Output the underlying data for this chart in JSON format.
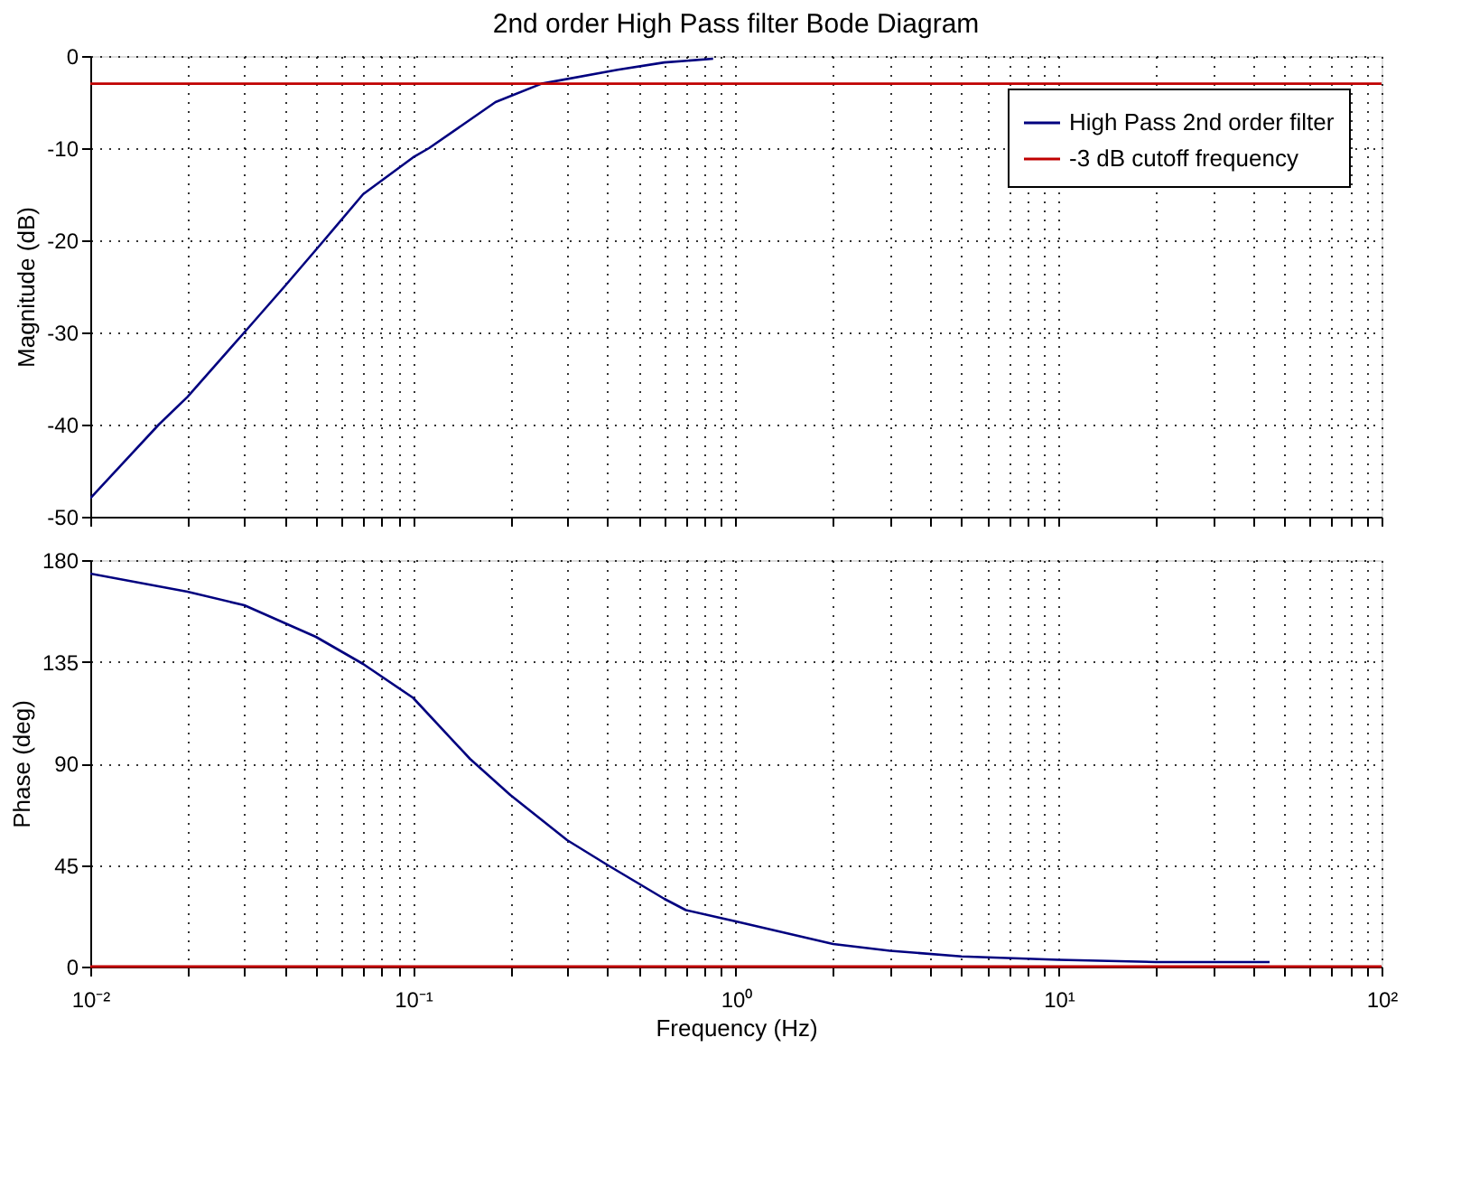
{
  "chart_data": [
    {
      "type": "line",
      "title": "2nd order High Pass filter Bode Diagram",
      "ylabel": "Magnitude (dB)",
      "series": [
        {
          "name": "High Pass 2nd order filter",
          "color": "#00007f",
          "x": [
            0.01,
            0.0163,
            0.02,
            0.03,
            0.04,
            0.053,
            0.07,
            0.1,
            0.112,
            0.18,
            0.25,
            0.43,
            0.6,
            0.85
          ],
          "values": [
            -48,
            -40,
            -37,
            -30,
            -25,
            -20,
            -15,
            -11,
            -10,
            -5,
            -3,
            -1.5,
            -0.7,
            -0.3
          ]
        },
        {
          "name": "-3 dB cutoff frequency",
          "color": "#c00000",
          "x": [
            0.01,
            100
          ],
          "values": [
            -3,
            -3
          ]
        }
      ],
      "xlim": [
        0.01,
        100
      ],
      "ylim": [
        -50,
        0
      ],
      "yticks": [
        -50,
        -40,
        -30,
        -20,
        -10,
        0
      ],
      "xticks": [
        {
          "value": 0.01,
          "label": null
        },
        {
          "value": 0.02,
          "label": null
        },
        {
          "value": 0.03,
          "label": null
        },
        {
          "value": 0.04,
          "label": null
        },
        {
          "value": 0.05,
          "label": null
        },
        {
          "value": 0.06,
          "label": null
        },
        {
          "value": 0.07,
          "label": null
        },
        {
          "value": 0.08,
          "label": null
        },
        {
          "value": 0.09,
          "label": null
        },
        {
          "value": 0.1,
          "label": null
        },
        {
          "value": 0.2,
          "label": null
        },
        {
          "value": 0.3,
          "label": null
        },
        {
          "value": 0.4,
          "label": null
        },
        {
          "value": 0.5,
          "label": null
        },
        {
          "value": 0.6,
          "label": null
        },
        {
          "value": 0.7,
          "label": null
        },
        {
          "value": 0.8,
          "label": null
        },
        {
          "value": 0.9,
          "label": null
        },
        {
          "value": 1,
          "label": null
        },
        {
          "value": 2,
          "label": null
        },
        {
          "value": 3,
          "label": null
        },
        {
          "value": 4,
          "label": null
        },
        {
          "value": 5,
          "label": null
        },
        {
          "value": 6,
          "label": null
        },
        {
          "value": 7,
          "label": null
        },
        {
          "value": 8,
          "label": null
        },
        {
          "value": 9,
          "label": null
        },
        {
          "value": 10,
          "label": null
        },
        {
          "value": 20,
          "label": null
        },
        {
          "value": 30,
          "label": null
        },
        {
          "value": 40,
          "label": null
        },
        {
          "value": 50,
          "label": null
        },
        {
          "value": 60,
          "label": null
        },
        {
          "value": 70,
          "label": null
        },
        {
          "value": 80,
          "label": null
        },
        {
          "value": 90,
          "label": null
        },
        {
          "value": 100,
          "label": null
        }
      ],
      "log": "x",
      "grid": true,
      "legend": "top right",
      "tick_labels": "y",
      "marker": "none",
      "line_style": "solid"
    },
    {
      "type": "line",
      "xlabel": "Frequency  (Hz)",
      "ylabel": "Phase (deg)",
      "series": [
        {
          "color": "#00007f",
          "x": [
            0.01,
            0.02,
            0.03,
            0.05,
            0.07,
            0.1,
            0.15,
            0.2,
            0.3,
            0.4,
            0.6,
            0.7,
            1,
            2,
            3,
            5,
            10,
            20,
            45
          ],
          "values": [
            174,
            166,
            160,
            146,
            134,
            119,
            92,
            76,
            56,
            45,
            30,
            25,
            20,
            10,
            7,
            4.5,
            3,
            2,
            2
          ]
        }
      ],
      "ref_lines": [
        {
          "axis": "y",
          "value": 0,
          "color": "#c00000"
        }
      ],
      "xlim": [
        0.01,
        100
      ],
      "ylim": [
        0,
        180
      ],
      "yticks": [
        0,
        45,
        90,
        135,
        180
      ],
      "xticks": [
        {
          "value": 0.01,
          "label": "10⁻²"
        },
        {
          "value": 0.02,
          "label": null
        },
        {
          "value": 0.03,
          "label": null
        },
        {
          "value": 0.04,
          "label": null
        },
        {
          "value": 0.05,
          "label": null
        },
        {
          "value": 0.06,
          "label": null
        },
        {
          "value": 0.07,
          "label": null
        },
        {
          "value": 0.08,
          "label": null
        },
        {
          "value": 0.09,
          "label": null
        },
        {
          "value": 0.1,
          "label": "10⁻¹"
        },
        {
          "value": 0.2,
          "label": null
        },
        {
          "value": 0.3,
          "label": null
        },
        {
          "value": 0.4,
          "label": null
        },
        {
          "value": 0.5,
          "label": null
        },
        {
          "value": 0.6,
          "label": null
        },
        {
          "value": 0.7,
          "label": null
        },
        {
          "value": 0.8,
          "label": null
        },
        {
          "value": 0.9,
          "label": null
        },
        {
          "value": 1,
          "label": "10⁰"
        },
        {
          "value": 2,
          "label": null
        },
        {
          "value": 3,
          "label": null
        },
        {
          "value": 4,
          "label": null
        },
        {
          "value": 5,
          "label": null
        },
        {
          "value": 6,
          "label": null
        },
        {
          "value": 7,
          "label": null
        },
        {
          "value": 8,
          "label": null
        },
        {
          "value": 9,
          "label": null
        },
        {
          "value": 10,
          "label": "10¹"
        },
        {
          "value": 20,
          "label": null
        },
        {
          "value": 30,
          "label": null
        },
        {
          "value": 40,
          "label": null
        },
        {
          "value": 50,
          "label": null
        },
        {
          "value": 60,
          "label": null
        },
        {
          "value": 70,
          "label": null
        },
        {
          "value": 80,
          "label": null
        },
        {
          "value": 90,
          "label": null
        },
        {
          "value": 100,
          "label": "10²"
        }
      ],
      "log": "x",
      "grid": true,
      "marker": "none",
      "line_style": "solid"
    }
  ]
}
